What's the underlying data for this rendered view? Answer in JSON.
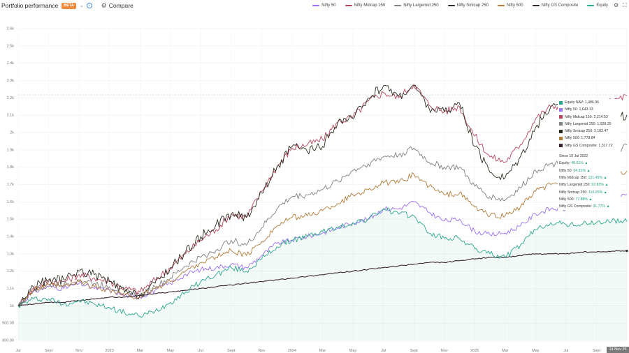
{
  "header": {
    "title": "Portfolio performance",
    "beta_label": "BETA",
    "compare_label": "Compare"
  },
  "colors": {
    "Nifty 50": "#9b6ff0",
    "Nifty Midcap 150": "#b8455e",
    "Nifty Largemid 250": "#808080",
    "Nifty Smlcap 250": "#2c2c1e",
    "Nifty 500": "#b07a38",
    "Nifty GS Composite": "#3a2535",
    "Equity": "#2aa68c"
  },
  "tooltip": {
    "values": [
      {
        "label": "Equity NAV: 1,486.06",
        "color": "#2aa68c"
      },
      {
        "label": "Nifty 50: 1,643.13",
        "color": "#9b6ff0"
      },
      {
        "label": "Nifty Midcap 150: 2,214.53",
        "color": "#b8455e"
      },
      {
        "label": "Nifty Largemid 250: 1,928.25",
        "color": "#808080"
      },
      {
        "label": "Nifty Smlcap 250: 2,102.47",
        "color": "#2c2c1e"
      },
      {
        "label": "Nifty 500: 1,778.84",
        "color": "#b07a38"
      },
      {
        "label": "Nifty GS Composite: 1,317.72",
        "color": "#3a2535"
      }
    ],
    "since_label": "Since 10 Jul 2022",
    "returns": [
      {
        "name": "Equity:",
        "pct": "48.61% ▲"
      },
      {
        "name": "Nifty 50:",
        "pct": "64.31% ▲"
      },
      {
        "name": "Nifty Midcap 150:",
        "pct": "121.45% ▲"
      },
      {
        "name": "Nifty Largemid 250:",
        "pct": "92.83% ▲"
      },
      {
        "name": "Nifty Smlcap 250:",
        "pct": "110.25% ▲"
      },
      {
        "name": "Nifty 500:",
        "pct": "77.88% ▲"
      },
      {
        "name": "Nifty GS Composite:",
        "pct": "31.77% ▲"
      }
    ]
  },
  "crosshair_date": "14 Nov 25",
  "chart_data": {
    "type": "line",
    "x": [
      "2022-07",
      "2022-08",
      "2022-09",
      "2022-10",
      "2022-11",
      "2022-12",
      "2023-01",
      "2023-02",
      "2023-03",
      "2023-04",
      "2023-05",
      "2023-06",
      "2023-07",
      "2023-08",
      "2023-09",
      "2023-10",
      "2023-11",
      "2023-12",
      "2024-01",
      "2024-02",
      "2024-03",
      "2024-04",
      "2024-05",
      "2024-06",
      "2024-07",
      "2024-08",
      "2024-09",
      "2024-10",
      "2024-11",
      "2024-12",
      "2025-01",
      "2025-02",
      "2025-03",
      "2025-04",
      "2025-05",
      "2025-06",
      "2025-07",
      "2025-08",
      "2025-09",
      "2025-10",
      "2025-11"
    ],
    "x_tick_labels": [
      "Jul",
      "Sept",
      "Nov",
      "2023",
      "Mar",
      "May",
      "Jul",
      "Sept",
      "Nov",
      "2024",
      "Mar",
      "May",
      "Jul",
      "Sept",
      "Nov",
      "2025",
      "Mar",
      "May",
      "Jul",
      "Sept",
      "Nov 25"
    ],
    "y_tick_labels": [
      "800.00",
      "900.00",
      "1k",
      "1.1k",
      "1.2k",
      "1.3k",
      "1.4k",
      "1.5k",
      "1.6k",
      "1.7k",
      "1.8k",
      "1.9k",
      "2k",
      "2.1k",
      "2.2k",
      "2.3k",
      "2.4k",
      "2.5k",
      "2.6k"
    ],
    "ylim": [
      800,
      2600
    ],
    "grid": true,
    "legend_position": "top-right",
    "series": [
      {
        "name": "Nifty 50",
        "values": [
          1000,
          1080,
          1110,
          1100,
          1130,
          1100,
          1090,
          1060,
          1050,
          1090,
          1130,
          1180,
          1210,
          1220,
          1240,
          1220,
          1290,
          1360,
          1380,
          1400,
          1420,
          1450,
          1480,
          1500,
          1560,
          1560,
          1600,
          1540,
          1490,
          1500,
          1430,
          1410,
          1420,
          1460,
          1530,
          1560,
          1560,
          1570,
          1590,
          1620,
          1643
        ]
      },
      {
        "name": "Nifty Midcap 150",
        "values": [
          1000,
          1100,
          1140,
          1140,
          1180,
          1160,
          1140,
          1100,
          1080,
          1150,
          1220,
          1300,
          1380,
          1440,
          1530,
          1510,
          1660,
          1800,
          1910,
          1930,
          1960,
          2060,
          2090,
          2180,
          2230,
          2200,
          2280,
          2160,
          2120,
          2150,
          1980,
          1860,
          1830,
          1930,
          2080,
          2150,
          2160,
          2090,
          2150,
          2180,
          2214
        ]
      },
      {
        "name": "Nifty Largemid 250",
        "values": [
          1000,
          1090,
          1120,
          1120,
          1150,
          1130,
          1110,
          1080,
          1060,
          1110,
          1160,
          1230,
          1280,
          1320,
          1380,
          1350,
          1450,
          1560,
          1630,
          1640,
          1670,
          1720,
          1780,
          1820,
          1860,
          1870,
          1910,
          1830,
          1800,
          1800,
          1690,
          1630,
          1610,
          1680,
          1780,
          1820,
          1820,
          1800,
          1830,
          1870,
          1928
        ]
      },
      {
        "name": "Nifty Smlcap 250",
        "values": [
          1000,
          1110,
          1150,
          1150,
          1200,
          1180,
          1140,
          1080,
          1060,
          1130,
          1220,
          1310,
          1400,
          1470,
          1530,
          1510,
          1650,
          1800,
          1920,
          1890,
          1920,
          2060,
          2080,
          2200,
          2270,
          2210,
          2270,
          2140,
          2120,
          2170,
          1920,
          1770,
          1740,
          1860,
          2030,
          2150,
          2140,
          2040,
          2100,
          2080,
          2102
        ]
      },
      {
        "name": "Nifty 500",
        "values": [
          1000,
          1090,
          1120,
          1110,
          1140,
          1110,
          1090,
          1060,
          1050,
          1100,
          1140,
          1200,
          1250,
          1280,
          1320,
          1290,
          1370,
          1460,
          1510,
          1520,
          1550,
          1590,
          1640,
          1670,
          1710,
          1710,
          1760,
          1690,
          1640,
          1650,
          1570,
          1520,
          1520,
          1570,
          1660,
          1700,
          1700,
          1690,
          1710,
          1740,
          1778
        ]
      },
      {
        "name": "Nifty GS Composite",
        "values": [
          1000,
          1010,
          1020,
          1020,
          1030,
          1040,
          1050,
          1050,
          1060,
          1070,
          1080,
          1090,
          1100,
          1110,
          1120,
          1130,
          1140,
          1150,
          1160,
          1170,
          1180,
          1190,
          1200,
          1210,
          1220,
          1230,
          1240,
          1250,
          1250,
          1260,
          1270,
          1280,
          1280,
          1290,
          1300,
          1300,
          1300,
          1310,
          1310,
          1315,
          1317
        ]
      },
      {
        "name": "Equity",
        "values": [
          1000,
          1040,
          1040,
          1010,
          1030,
          1010,
          990,
          960,
          940,
          970,
          1020,
          1080,
          1140,
          1180,
          1220,
          1200,
          1270,
          1340,
          1380,
          1400,
          1430,
          1450,
          1480,
          1500,
          1560,
          1530,
          1520,
          1420,
          1390,
          1390,
          1330,
          1300,
          1280,
          1350,
          1440,
          1480,
          1470,
          1470,
          1480,
          1490,
          1486
        ]
      }
    ]
  }
}
